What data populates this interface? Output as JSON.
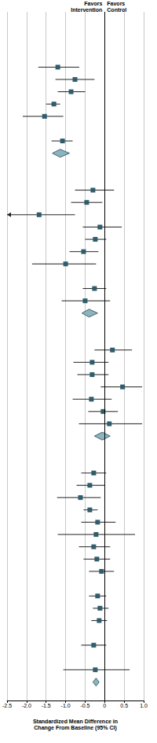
{
  "chart_data": {
    "type": "forest",
    "annotations": [
      "Favors\nIntervention",
      "Favors\nControl"
    ],
    "x_label": "Standardized Mean Difference in\nChange From Baseline (95% CI)",
    "xlim": [
      -2.5,
      1.0
    ],
    "xticks": [
      -2.5,
      {
        "value": -2.0,
        "label": "-2.0"
      },
      -1.5,
      {
        "value": -1.0,
        "label": "-1.0"
      },
      -0.5,
      0,
      0.5,
      {
        "value": 1.0,
        "label": "1.0"
      }
    ],
    "grid": true,
    "reference": 0,
    "tick_labels": "x",
    "categories": [
      null,
      null,
      null,
      null,
      null,
      null,
      null,
      null,
      null,
      null,
      null,
      null,
      null,
      null,
      null,
      null,
      null,
      null,
      null,
      null,
      null,
      null,
      null,
      null,
      null,
      null,
      null,
      null,
      null,
      null,
      null,
      null,
      null,
      null,
      null,
      null,
      null,
      null,
      null,
      null,
      null,
      null,
      null,
      null,
      null,
      null,
      null,
      null,
      null,
      null,
      null,
      null,
      null,
      null,
      null,
      null
    ],
    "series": [
      {
        "marker": "square",
        "color": "#2f5d6b",
        "values": [
          null,
          null,
          null,
          null,
          -1.2,
          -0.76,
          -0.86,
          -1.3,
          -1.54,
          null,
          -1.08,
          null,
          null,
          null,
          -0.3,
          -0.46,
          -1.68,
          -0.12,
          -0.24,
          -0.54,
          -1.0,
          null,
          -0.26,
          -0.5,
          null,
          null,
          null,
          0.2,
          -0.32,
          -0.32,
          0.46,
          -0.34,
          -0.04,
          0.12,
          null,
          null,
          null,
          -0.28,
          -0.38,
          -0.62,
          -0.38,
          -0.18,
          -0.22,
          -0.28,
          -0.2,
          -0.08,
          null,
          -0.18,
          -0.12,
          -0.14,
          null,
          -0.28,
          null,
          -0.24,
          null,
          null
        ],
        "lower": [
          null,
          null,
          null,
          null,
          -1.7,
          -1.26,
          -1.2,
          -1.5,
          -2.1,
          null,
          -1.36,
          null,
          null,
          null,
          -0.76,
          -0.86,
          -2.8,
          -0.56,
          -0.5,
          -0.9,
          -1.86,
          null,
          -0.56,
          -1.1,
          null,
          null,
          null,
          -0.26,
          -0.8,
          -0.7,
          -0.1,
          -0.82,
          -0.42,
          -0.66,
          null,
          null,
          null,
          -0.6,
          -0.72,
          -1.22,
          -0.54,
          -0.6,
          -1.2,
          -0.66,
          -0.54,
          -0.4,
          null,
          -0.4,
          -0.3,
          -0.34,
          null,
          -0.6,
          null,
          -1.06,
          null,
          null
        ],
        "upper": [
          null,
          null,
          null,
          null,
          -0.65,
          -0.26,
          -0.5,
          -1.14,
          -1.06,
          null,
          -0.82,
          null,
          null,
          null,
          0.24,
          -0.06,
          -0.76,
          0.44,
          0.04,
          -0.16,
          -0.22,
          null,
          0.04,
          0.14,
          null,
          null,
          null,
          0.7,
          0.1,
          0.1,
          0.96,
          0.18,
          0.34,
          0.96,
          null,
          null,
          null,
          0.04,
          0,
          -0.1,
          -0.18,
          0.28,
          0.78,
          0.14,
          0.14,
          0.24,
          null,
          0.04,
          0.1,
          0.06,
          null,
          0.04,
          null,
          0.64,
          null,
          null
        ]
      },
      {
        "marker": "diamond",
        "color": "#8db3bf",
        "values": [
          null,
          null,
          null,
          null,
          null,
          null,
          null,
          null,
          null,
          null,
          null,
          -1.14,
          null,
          null,
          null,
          null,
          null,
          null,
          null,
          null,
          null,
          null,
          null,
          null,
          -0.4,
          null,
          null,
          null,
          null,
          null,
          null,
          null,
          null,
          null,
          -0.06,
          null,
          null,
          null,
          null,
          null,
          null,
          null,
          null,
          null,
          null,
          null,
          null,
          null,
          null,
          null,
          null,
          null,
          null,
          null,
          -0.22,
          null
        ],
        "lower": [
          null,
          null,
          null,
          null,
          null,
          null,
          null,
          null,
          null,
          null,
          null,
          -1.34,
          null,
          null,
          null,
          null,
          null,
          null,
          null,
          null,
          null,
          null,
          null,
          null,
          -0.58,
          null,
          null,
          null,
          null,
          null,
          null,
          null,
          null,
          null,
          -0.26,
          null,
          null,
          null,
          null,
          null,
          null,
          null,
          null,
          null,
          null,
          null,
          null,
          null,
          null,
          null,
          null,
          null,
          null,
          null,
          -0.3,
          null
        ],
        "upper": [
          null,
          null,
          null,
          null,
          null,
          null,
          null,
          null,
          null,
          null,
          null,
          -0.9,
          null,
          null,
          null,
          null,
          null,
          null,
          null,
          null,
          null,
          null,
          null,
          null,
          -0.18,
          null,
          null,
          null,
          null,
          null,
          null,
          null,
          null,
          null,
          0.14,
          null,
          null,
          null,
          null,
          null,
          null,
          null,
          null,
          null,
          null,
          null,
          null,
          null,
          null,
          null,
          null,
          null,
          null,
          null,
          -0.14,
          null
        ]
      }
    ]
  }
}
